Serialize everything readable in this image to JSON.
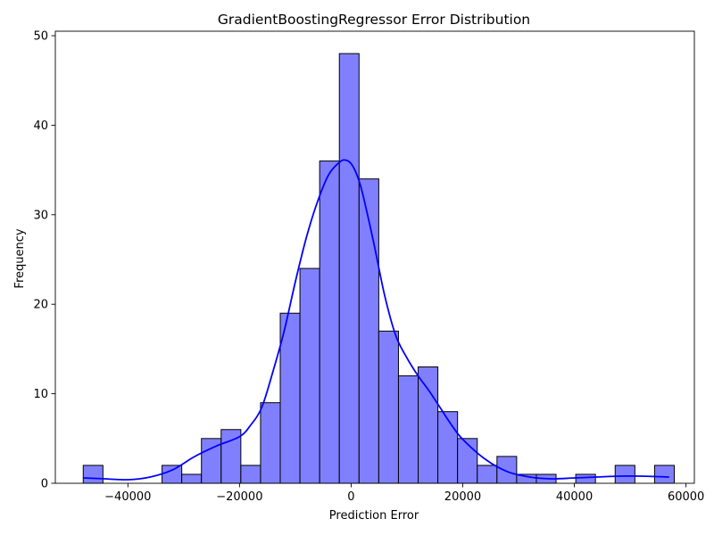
{
  "chart_data": {
    "type": "bar",
    "subtype": "histogram-with-kde",
    "title": "GradientBoostingRegressor Error Distribution",
    "xlabel": "Prediction Error",
    "ylabel": "Frequency",
    "xlim": [
      -53000,
      61500
    ],
    "ylim": [
      0,
      50.5
    ],
    "xticks": [
      -40000,
      -20000,
      0,
      20000,
      40000,
      60000
    ],
    "xtick_labels": [
      "−40000",
      "−20000",
      "0",
      "20000",
      "40000",
      "60000"
    ],
    "yticks": [
      0,
      10,
      20,
      30,
      40,
      50
    ],
    "ytick_labels": [
      "0",
      "10",
      "20",
      "30",
      "40",
      "50"
    ],
    "bins": {
      "start": -48000,
      "width": 3530,
      "counts": [
        2,
        0,
        0,
        0,
        2,
        1,
        5,
        6,
        2,
        9,
        19,
        24,
        36,
        48,
        34,
        17,
        12,
        13,
        8,
        5,
        2,
        3,
        1,
        1,
        0,
        1,
        0,
        2,
        0,
        2
      ]
    },
    "kde": {
      "x": [
        -48000,
        -44000,
        -40000,
        -36000,
        -32000,
        -28000,
        -24000,
        -20000,
        -18000,
        -16000,
        -14000,
        -12000,
        -10000,
        -8000,
        -6000,
        -4000,
        -2000,
        -1000,
        0,
        1000,
        2000,
        4000,
        6000,
        8000,
        10000,
        12000,
        14000,
        16000,
        18000,
        20000,
        24000,
        28000,
        32000,
        36000,
        40000,
        44000,
        48000,
        52000,
        57000
      ],
      "y": [
        0.6,
        0.5,
        0.4,
        0.7,
        1.5,
        3.0,
        4.2,
        5.2,
        6.5,
        8.5,
        12.5,
        17.0,
        22.5,
        27.5,
        31.5,
        34.5,
        35.9,
        36.1,
        35.7,
        34.5,
        32.5,
        27.0,
        21.0,
        16.5,
        14.0,
        12.0,
        10.3,
        8.4,
        6.5,
        4.9,
        2.7,
        1.3,
        0.7,
        0.5,
        0.6,
        0.7,
        0.8,
        0.8,
        0.7
      ]
    },
    "colors": {
      "bar_fill": "#8080ff",
      "bar_edge": "#000000",
      "kde_line": "#0000ff"
    },
    "grid": false,
    "legend": "none"
  }
}
